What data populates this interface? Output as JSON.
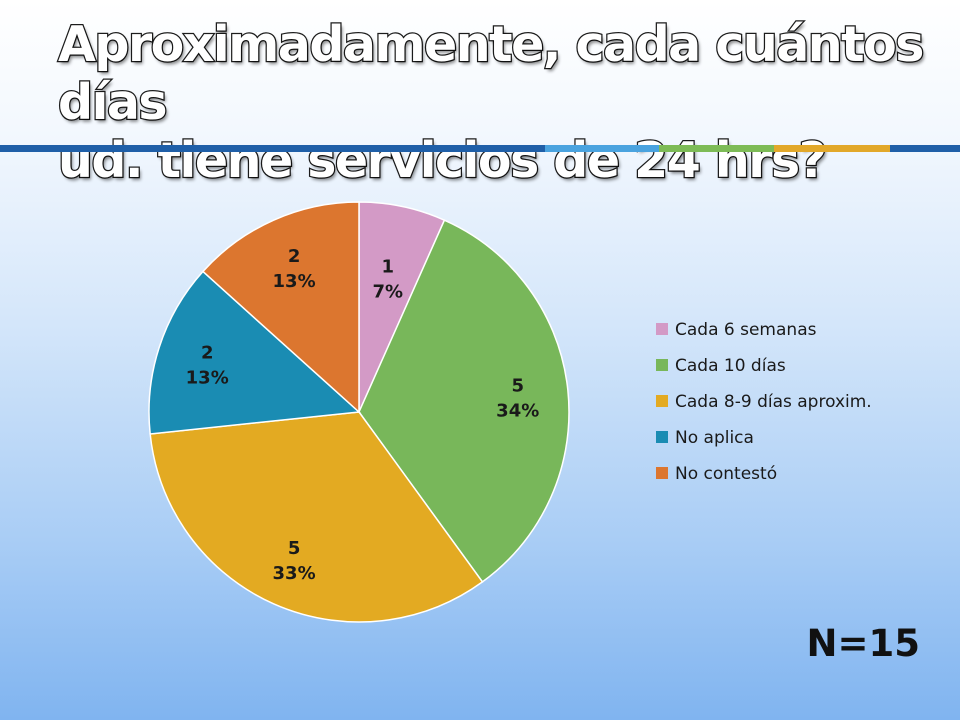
{
  "slide": {
    "title_line1": "Aproximadamente, cada cuántos días",
    "title_line2": "ud. tiene servicios de 24 hrs?",
    "n_label": "N=15"
  },
  "colors": {
    "rule_main": "#1f5fa8",
    "rule_accent_blue": "#4aa3df",
    "rule_accent_green": "#7dbb56",
    "rule_accent_gold": "#e2a82a"
  },
  "chart_data": {
    "type": "pie",
    "title": "",
    "legend_position": "right",
    "slices": [
      {
        "name": "Cada 6 semanas",
        "value": 1,
        "percent": "7%",
        "color": "#d39ac6"
      },
      {
        "name": "Cada 10 días",
        "value": 5,
        "percent": "34%",
        "color": "#78b75a"
      },
      {
        "name": "Cada 8-9 días aproxim.",
        "value": 5,
        "percent": "33%",
        "color": "#e3aa22"
      },
      {
        "name": "No aplica",
        "value": 2,
        "percent": "13%",
        "color": "#1a8cb3"
      },
      {
        "name": "No contestó",
        "value": 2,
        "percent": "13%",
        "color": "#dc762f"
      }
    ]
  }
}
